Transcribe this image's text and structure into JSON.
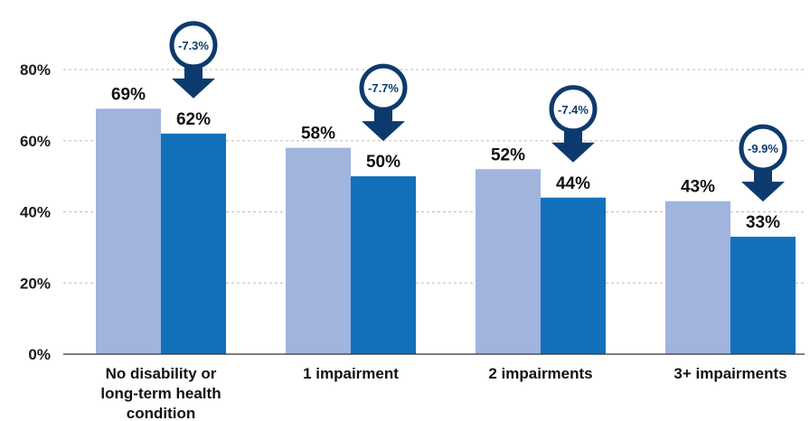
{
  "chart_data": {
    "type": "bar",
    "categories": [
      [
        "No disability or",
        "long-term health",
        "condition"
      ],
      [
        "1 impairment"
      ],
      [
        "2 impairments"
      ],
      [
        "3+ impairments"
      ]
    ],
    "series": [
      {
        "values": [
          69,
          58,
          52,
          43
        ],
        "labels": [
          "69%",
          "58%",
          "52%",
          "43%"
        ]
      },
      {
        "values": [
          62,
          50,
          44,
          33
        ],
        "labels": [
          "62%",
          "50%",
          "44%",
          "33%"
        ]
      }
    ],
    "changes": [
      "-7.3%",
      "-7.7%",
      "-7.4%",
      "-9.9%"
    ],
    "y_ticks": [
      "0%",
      "20%",
      "40%",
      "60%",
      "80%"
    ],
    "ylim": [
      0,
      80
    ],
    "grid": true,
    "colors": {
      "series_1": "#a0b4de",
      "series_2": "#1270ba",
      "arrow": "#0d3a6e",
      "grid": "#bbbbbb",
      "axis": "#333333"
    }
  }
}
